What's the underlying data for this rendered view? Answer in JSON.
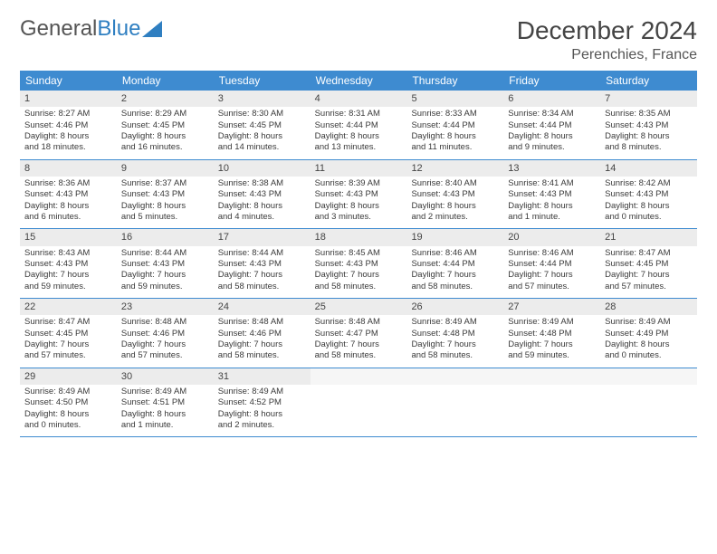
{
  "logo": {
    "text1": "General",
    "text2": "Blue"
  },
  "title": "December 2024",
  "location": "Perenchies, France",
  "colors": {
    "header_bg": "#3e8bd0",
    "header_text": "#ffffff",
    "daynum_bg": "#ececec",
    "border": "#3e8bd0",
    "text": "#3a3a3a",
    "logo_blue": "#2f7fc1"
  },
  "day_names": [
    "Sunday",
    "Monday",
    "Tuesday",
    "Wednesday",
    "Thursday",
    "Friday",
    "Saturday"
  ],
  "weeks": [
    [
      {
        "day": "1",
        "sunrise": "Sunrise: 8:27 AM",
        "sunset": "Sunset: 4:46 PM",
        "daylight1": "Daylight: 8 hours",
        "daylight2": "and 18 minutes."
      },
      {
        "day": "2",
        "sunrise": "Sunrise: 8:29 AM",
        "sunset": "Sunset: 4:45 PM",
        "daylight1": "Daylight: 8 hours",
        "daylight2": "and 16 minutes."
      },
      {
        "day": "3",
        "sunrise": "Sunrise: 8:30 AM",
        "sunset": "Sunset: 4:45 PM",
        "daylight1": "Daylight: 8 hours",
        "daylight2": "and 14 minutes."
      },
      {
        "day": "4",
        "sunrise": "Sunrise: 8:31 AM",
        "sunset": "Sunset: 4:44 PM",
        "daylight1": "Daylight: 8 hours",
        "daylight2": "and 13 minutes."
      },
      {
        "day": "5",
        "sunrise": "Sunrise: 8:33 AM",
        "sunset": "Sunset: 4:44 PM",
        "daylight1": "Daylight: 8 hours",
        "daylight2": "and 11 minutes."
      },
      {
        "day": "6",
        "sunrise": "Sunrise: 8:34 AM",
        "sunset": "Sunset: 4:44 PM",
        "daylight1": "Daylight: 8 hours",
        "daylight2": "and 9 minutes."
      },
      {
        "day": "7",
        "sunrise": "Sunrise: 8:35 AM",
        "sunset": "Sunset: 4:43 PM",
        "daylight1": "Daylight: 8 hours",
        "daylight2": "and 8 minutes."
      }
    ],
    [
      {
        "day": "8",
        "sunrise": "Sunrise: 8:36 AM",
        "sunset": "Sunset: 4:43 PM",
        "daylight1": "Daylight: 8 hours",
        "daylight2": "and 6 minutes."
      },
      {
        "day": "9",
        "sunrise": "Sunrise: 8:37 AM",
        "sunset": "Sunset: 4:43 PM",
        "daylight1": "Daylight: 8 hours",
        "daylight2": "and 5 minutes."
      },
      {
        "day": "10",
        "sunrise": "Sunrise: 8:38 AM",
        "sunset": "Sunset: 4:43 PM",
        "daylight1": "Daylight: 8 hours",
        "daylight2": "and 4 minutes."
      },
      {
        "day": "11",
        "sunrise": "Sunrise: 8:39 AM",
        "sunset": "Sunset: 4:43 PM",
        "daylight1": "Daylight: 8 hours",
        "daylight2": "and 3 minutes."
      },
      {
        "day": "12",
        "sunrise": "Sunrise: 8:40 AM",
        "sunset": "Sunset: 4:43 PM",
        "daylight1": "Daylight: 8 hours",
        "daylight2": "and 2 minutes."
      },
      {
        "day": "13",
        "sunrise": "Sunrise: 8:41 AM",
        "sunset": "Sunset: 4:43 PM",
        "daylight1": "Daylight: 8 hours",
        "daylight2": "and 1 minute."
      },
      {
        "day": "14",
        "sunrise": "Sunrise: 8:42 AM",
        "sunset": "Sunset: 4:43 PM",
        "daylight1": "Daylight: 8 hours",
        "daylight2": "and 0 minutes."
      }
    ],
    [
      {
        "day": "15",
        "sunrise": "Sunrise: 8:43 AM",
        "sunset": "Sunset: 4:43 PM",
        "daylight1": "Daylight: 7 hours",
        "daylight2": "and 59 minutes."
      },
      {
        "day": "16",
        "sunrise": "Sunrise: 8:44 AM",
        "sunset": "Sunset: 4:43 PM",
        "daylight1": "Daylight: 7 hours",
        "daylight2": "and 59 minutes."
      },
      {
        "day": "17",
        "sunrise": "Sunrise: 8:44 AM",
        "sunset": "Sunset: 4:43 PM",
        "daylight1": "Daylight: 7 hours",
        "daylight2": "and 58 minutes."
      },
      {
        "day": "18",
        "sunrise": "Sunrise: 8:45 AM",
        "sunset": "Sunset: 4:43 PM",
        "daylight1": "Daylight: 7 hours",
        "daylight2": "and 58 minutes."
      },
      {
        "day": "19",
        "sunrise": "Sunrise: 8:46 AM",
        "sunset": "Sunset: 4:44 PM",
        "daylight1": "Daylight: 7 hours",
        "daylight2": "and 58 minutes."
      },
      {
        "day": "20",
        "sunrise": "Sunrise: 8:46 AM",
        "sunset": "Sunset: 4:44 PM",
        "daylight1": "Daylight: 7 hours",
        "daylight2": "and 57 minutes."
      },
      {
        "day": "21",
        "sunrise": "Sunrise: 8:47 AM",
        "sunset": "Sunset: 4:45 PM",
        "daylight1": "Daylight: 7 hours",
        "daylight2": "and 57 minutes."
      }
    ],
    [
      {
        "day": "22",
        "sunrise": "Sunrise: 8:47 AM",
        "sunset": "Sunset: 4:45 PM",
        "daylight1": "Daylight: 7 hours",
        "daylight2": "and 57 minutes."
      },
      {
        "day": "23",
        "sunrise": "Sunrise: 8:48 AM",
        "sunset": "Sunset: 4:46 PM",
        "daylight1": "Daylight: 7 hours",
        "daylight2": "and 57 minutes."
      },
      {
        "day": "24",
        "sunrise": "Sunrise: 8:48 AM",
        "sunset": "Sunset: 4:46 PM",
        "daylight1": "Daylight: 7 hours",
        "daylight2": "and 58 minutes."
      },
      {
        "day": "25",
        "sunrise": "Sunrise: 8:48 AM",
        "sunset": "Sunset: 4:47 PM",
        "daylight1": "Daylight: 7 hours",
        "daylight2": "and 58 minutes."
      },
      {
        "day": "26",
        "sunrise": "Sunrise: 8:49 AM",
        "sunset": "Sunset: 4:48 PM",
        "daylight1": "Daylight: 7 hours",
        "daylight2": "and 58 minutes."
      },
      {
        "day": "27",
        "sunrise": "Sunrise: 8:49 AM",
        "sunset": "Sunset: 4:48 PM",
        "daylight1": "Daylight: 7 hours",
        "daylight2": "and 59 minutes."
      },
      {
        "day": "28",
        "sunrise": "Sunrise: 8:49 AM",
        "sunset": "Sunset: 4:49 PM",
        "daylight1": "Daylight: 8 hours",
        "daylight2": "and 0 minutes."
      }
    ],
    [
      {
        "day": "29",
        "sunrise": "Sunrise: 8:49 AM",
        "sunset": "Sunset: 4:50 PM",
        "daylight1": "Daylight: 8 hours",
        "daylight2": "and 0 minutes."
      },
      {
        "day": "30",
        "sunrise": "Sunrise: 8:49 AM",
        "sunset": "Sunset: 4:51 PM",
        "daylight1": "Daylight: 8 hours",
        "daylight2": "and 1 minute."
      },
      {
        "day": "31",
        "sunrise": "Sunrise: 8:49 AM",
        "sunset": "Sunset: 4:52 PM",
        "daylight1": "Daylight: 8 hours",
        "daylight2": "and 2 minutes."
      },
      {
        "empty": true
      },
      {
        "empty": true
      },
      {
        "empty": true
      },
      {
        "empty": true
      }
    ]
  ]
}
